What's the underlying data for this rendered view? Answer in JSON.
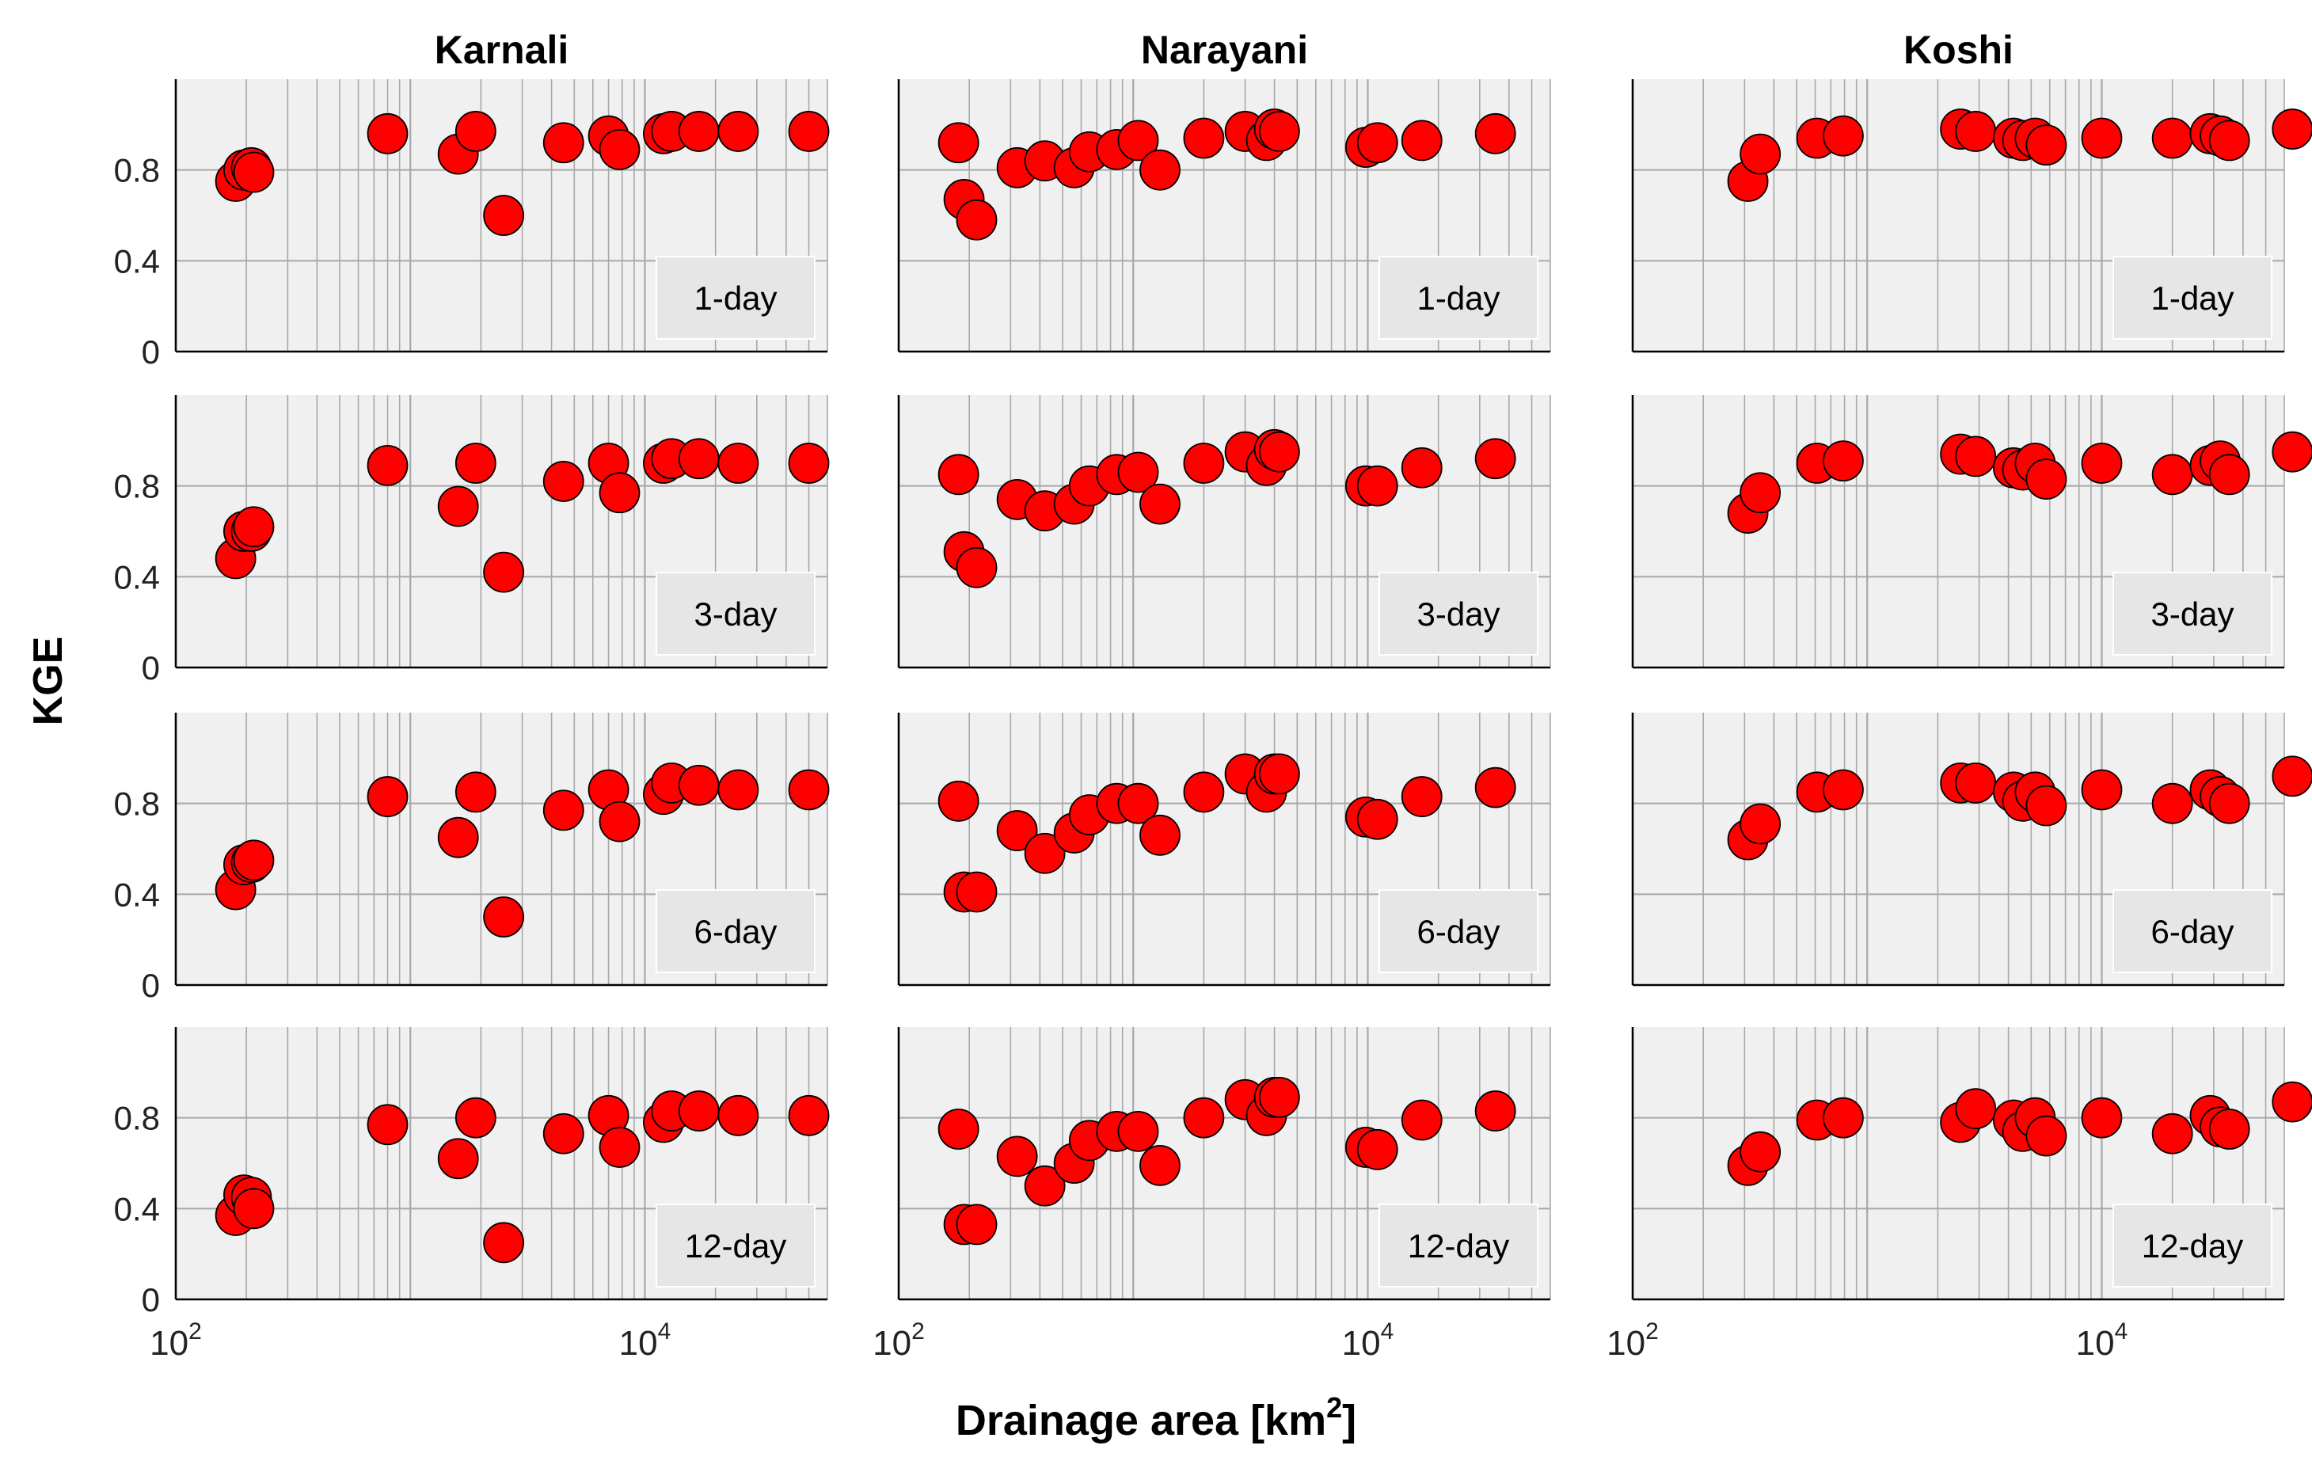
{
  "figure": {
    "ylabel": "KGE",
    "xlabel_main": "Drainage area [km",
    "xlabel_sup": "2",
    "xlabel_close": "]"
  },
  "colors": {
    "panel_bg": "#f0f0f0",
    "grid": "#a8a8a8",
    "marker_fill": "#ff0000",
    "marker_stroke": "#000000",
    "legend_bg": "#e6e6e6"
  },
  "chart_data": {
    "type": "scatter",
    "x_scale": "log",
    "xlim": [
      100,
      60000
    ],
    "ylim": [
      0,
      1.2
    ],
    "yticks": [
      {
        "value": 0,
        "label": "0"
      },
      {
        "value": 0.4,
        "label": "0.4"
      },
      {
        "value": 0.8,
        "label": "0.8"
      }
    ],
    "xticks": [
      {
        "value": 100,
        "base": "10",
        "exp": "2"
      },
      {
        "value": 10000,
        "base": "10",
        "exp": "4"
      }
    ],
    "windows": [
      "1-day",
      "3-day",
      "6-day",
      "12-day"
    ],
    "basins": [
      {
        "name": "Karnali",
        "x": [
          180,
          195,
          210,
          215,
          800,
          1600,
          1900,
          2500,
          4500,
          7000,
          7800,
          12000,
          13000,
          17000,
          25000,
          50000
        ],
        "series": [
          {
            "window": "1-day",
            "values": [
              0.75,
              0.8,
              0.81,
              0.79,
              0.96,
              0.87,
              0.97,
              0.6,
              0.92,
              0.95,
              0.89,
              0.96,
              0.97,
              0.97,
              0.97,
              0.97
            ]
          },
          {
            "window": "3-day",
            "values": [
              0.48,
              0.6,
              0.6,
              0.62,
              0.89,
              0.71,
              0.9,
              0.42,
              0.82,
              0.9,
              0.77,
              0.9,
              0.92,
              0.92,
              0.9,
              0.9
            ]
          },
          {
            "window": "6-day",
            "values": [
              0.42,
              0.53,
              0.54,
              0.55,
              0.83,
              0.65,
              0.85,
              0.3,
              0.77,
              0.86,
              0.72,
              0.84,
              0.89,
              0.88,
              0.86,
              0.86
            ]
          },
          {
            "window": "12-day",
            "values": [
              0.37,
              0.46,
              0.45,
              0.4,
              0.77,
              0.62,
              0.8,
              0.25,
              0.73,
              0.81,
              0.67,
              0.78,
              0.83,
              0.83,
              0.81,
              0.81
            ]
          }
        ]
      },
      {
        "name": "Narayani",
        "x": [
          180,
          190,
          215,
          320,
          420,
          560,
          650,
          850,
          1050,
          1300,
          2000,
          3000,
          3700,
          4000,
          4200,
          9800,
          11000,
          17000,
          35000
        ],
        "series": [
          {
            "window": "1-day",
            "values": [
              0.92,
              0.67,
              0.58,
              0.81,
              0.84,
              0.81,
              0.88,
              0.89,
              0.93,
              0.8,
              0.94,
              0.97,
              0.93,
              0.98,
              0.97,
              0.9,
              0.92,
              0.93,
              0.96
            ]
          },
          {
            "window": "3-day",
            "values": [
              0.85,
              0.51,
              0.44,
              0.74,
              0.69,
              0.72,
              0.8,
              0.85,
              0.86,
              0.72,
              0.9,
              0.95,
              0.89,
              0.96,
              0.95,
              0.8,
              0.8,
              0.88,
              0.92
            ]
          },
          {
            "window": "6-day",
            "values": [
              0.81,
              0.41,
              0.41,
              0.68,
              0.58,
              0.67,
              0.75,
              0.8,
              0.8,
              0.66,
              0.85,
              0.93,
              0.85,
              0.93,
              0.93,
              0.74,
              0.73,
              0.83,
              0.87
            ]
          },
          {
            "window": "12-day",
            "values": [
              0.75,
              0.33,
              0.33,
              0.63,
              0.5,
              0.6,
              0.7,
              0.74,
              0.74,
              0.59,
              0.8,
              0.88,
              0.81,
              0.89,
              0.89,
              0.67,
              0.66,
              0.79,
              0.83
            ]
          }
        ]
      },
      {
        "name": "Koshi",
        "x": [
          310,
          350,
          610,
          790,
          2500,
          2900,
          4200,
          4600,
          5200,
          5800,
          10000,
          20000,
          29000,
          32000,
          35000,
          65000
        ],
        "series": [
          {
            "window": "1-day",
            "values": [
              0.75,
              0.87,
              0.94,
              0.95,
              0.98,
              0.97,
              0.94,
              0.93,
              0.94,
              0.91,
              0.94,
              0.94,
              0.96,
              0.95,
              0.93,
              0.98
            ]
          },
          {
            "window": "3-day",
            "values": [
              0.68,
              0.77,
              0.9,
              0.91,
              0.94,
              0.93,
              0.88,
              0.87,
              0.9,
              0.83,
              0.9,
              0.85,
              0.89,
              0.91,
              0.85,
              0.95
            ]
          },
          {
            "window": "6-day",
            "values": [
              0.64,
              0.71,
              0.85,
              0.86,
              0.89,
              0.89,
              0.85,
              0.81,
              0.85,
              0.79,
              0.86,
              0.8,
              0.86,
              0.83,
              0.8,
              0.92
            ]
          },
          {
            "window": "12-day",
            "values": [
              0.59,
              0.65,
              0.79,
              0.8,
              0.78,
              0.84,
              0.79,
              0.74,
              0.8,
              0.72,
              0.8,
              0.73,
              0.81,
              0.76,
              0.75,
              0.87
            ]
          }
        ]
      }
    ]
  }
}
